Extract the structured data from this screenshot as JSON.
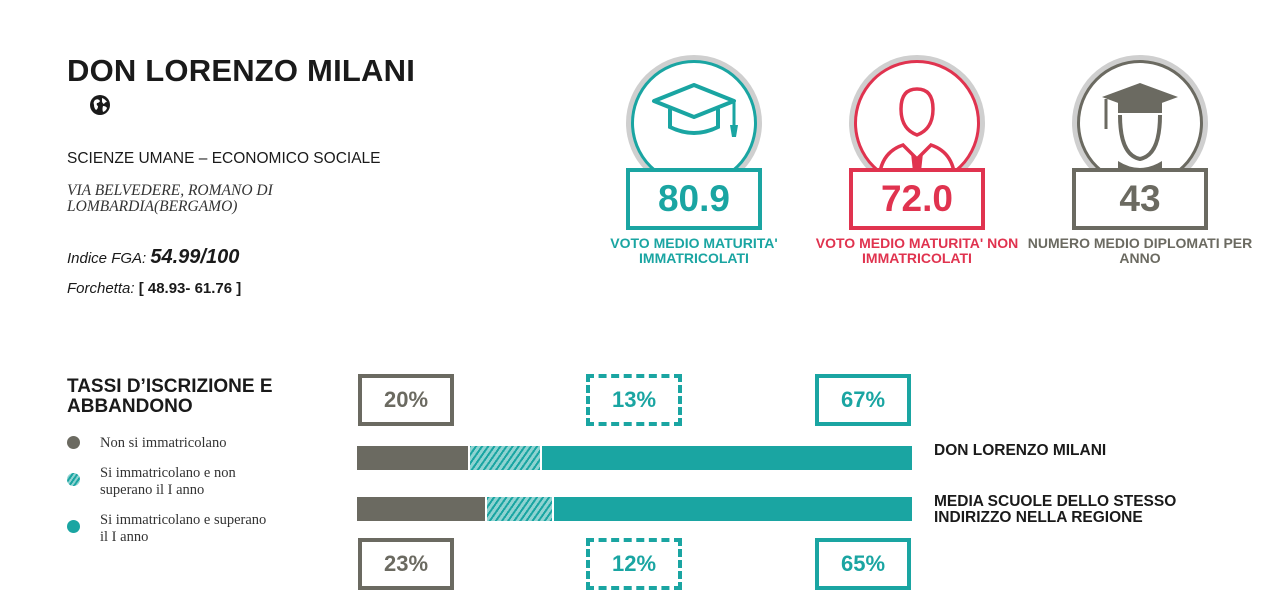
{
  "school": {
    "name": "DON LORENZO MILANI",
    "track": "SCIENZE UMANE – ECONOMICO SOCIALE",
    "address": "VIA BELVEDERE, ROMANO DI LOMBARDIA(BERGAMO)",
    "fga_label": "Indice FGA:",
    "fga_value": "54.99/100",
    "forchetta_label": "Forchetta:",
    "forchetta_value": "[ 48.93- 61.76 ]",
    "icon": "globe-icon"
  },
  "stats": [
    {
      "value": "80.9",
      "label": "VOTO MEDIO MATURITA' IMMATRICOLATI",
      "color": "#1aa5a2",
      "icon": "graduation-cap-icon"
    },
    {
      "value": "72.0",
      "label": "VOTO MEDIO MATURITA' NON IMMATRICOLATI",
      "color": "#e0334f",
      "icon": "person-icon"
    },
    {
      "value": "43",
      "label": "NUMERO MEDIO DIPLOMATI PER ANNO",
      "color": "#6b6a61",
      "icon": "graduate-head-icon"
    }
  ],
  "rates": {
    "title": "TASSI D’ISCRIZIONE E ABBANDONO",
    "legend": [
      {
        "label": "Non si immatricolano",
        "color": "#6b6a61",
        "style": "solid"
      },
      {
        "label": "Si immatricolano e non superano il I anno",
        "color": "#1aa5a2",
        "style": "hatched"
      },
      {
        "label": "Si immatricolano e superano il I anno",
        "color": "#1aa5a2",
        "style": "solid"
      }
    ],
    "rows": [
      {
        "label": "DON LORENZO MILANI",
        "values": [
          20,
          13,
          67
        ],
        "display": [
          "20%",
          "13%",
          "67%"
        ]
      },
      {
        "label": "MEDIA SCUOLE DELLO STESSO INDIRIZZO NELLA REGIONE",
        "values": [
          23,
          12,
          65
        ],
        "display": [
          "23%",
          "12%",
          "65%"
        ]
      }
    ]
  }
}
